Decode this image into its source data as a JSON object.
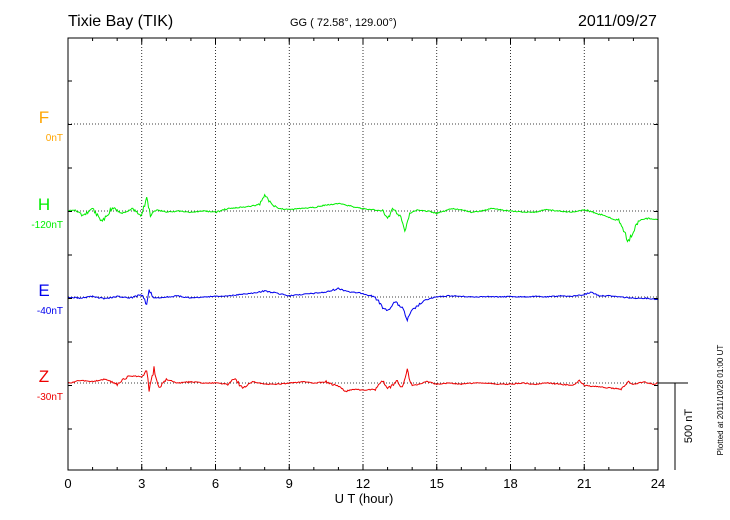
{
  "header": {
    "station": "Tixie Bay (TIK)",
    "coords": "GG ( 72.58°, 129.00°)",
    "date": "2011/09/27"
  },
  "side_note": "Plotted at 2011/10/28 01:00 UT",
  "scale_label": "500 nT",
  "chart_data": {
    "type": "line",
    "xlabel": "U T (hour)",
    "xlim": [
      0,
      24
    ],
    "x_ticks": [
      "0",
      "3",
      "6",
      "9",
      "12",
      "15",
      "18",
      "21",
      "24"
    ],
    "grid": true,
    "scale_bar_nT": 500,
    "colors": {
      "F": "#ffa500",
      "H": "#00ee00",
      "E": "#0000ee",
      "Z": "#ee0000"
    },
    "series": [
      {
        "name": "F",
        "baseline": "0nT",
        "color": "#ffa500",
        "points": []
      },
      {
        "name": "H",
        "baseline": "-120nT",
        "color": "#00ee00",
        "points": [
          [
            0.0,
            0
          ],
          [
            0.3,
            -10
          ],
          [
            0.6,
            40
          ],
          [
            1.0,
            -20
          ],
          [
            1.4,
            90
          ],
          [
            1.8,
            -30
          ],
          [
            2.2,
            20
          ],
          [
            2.6,
            -20
          ],
          [
            3.0,
            40
          ],
          [
            3.2,
            -120
          ],
          [
            3.35,
            40
          ],
          [
            3.6,
            -10
          ],
          [
            4.0,
            10
          ],
          [
            4.5,
            0
          ],
          [
            5.0,
            10
          ],
          [
            5.5,
            0
          ],
          [
            6.0,
            10
          ],
          [
            6.5,
            -20
          ],
          [
            7.0,
            -30
          ],
          [
            7.5,
            -40
          ],
          [
            7.8,
            -60
          ],
          [
            8.0,
            -130
          ],
          [
            8.3,
            -50
          ],
          [
            8.6,
            -20
          ],
          [
            9.0,
            -10
          ],
          [
            9.5,
            -20
          ],
          [
            10.0,
            -30
          ],
          [
            10.5,
            -50
          ],
          [
            11.0,
            -60
          ],
          [
            11.5,
            -40
          ],
          [
            12.0,
            -20
          ],
          [
            12.4,
            -10
          ],
          [
            12.8,
            0
          ],
          [
            13.0,
            70
          ],
          [
            13.2,
            -20
          ],
          [
            13.5,
            40
          ],
          [
            13.7,
            160
          ],
          [
            13.9,
            20
          ],
          [
            14.2,
            -10
          ],
          [
            14.6,
            0
          ],
          [
            15.0,
            20
          ],
          [
            15.3,
            0
          ],
          [
            15.6,
            -20
          ],
          [
            16.0,
            -10
          ],
          [
            16.4,
            10
          ],
          [
            16.8,
            0
          ],
          [
            17.2,
            -20
          ],
          [
            17.6,
            -10
          ],
          [
            18.0,
            0
          ],
          [
            18.5,
            10
          ],
          [
            19.0,
            10
          ],
          [
            19.5,
            -10
          ],
          [
            20.0,
            0
          ],
          [
            20.5,
            10
          ],
          [
            21.0,
            -10
          ],
          [
            21.5,
            20
          ],
          [
            22.0,
            50
          ],
          [
            22.4,
            80
          ],
          [
            22.8,
            250
          ],
          [
            23.2,
            80
          ],
          [
            23.6,
            60
          ],
          [
            24.0,
            70
          ]
        ]
      },
      {
        "name": "E",
        "baseline": "-40nT",
        "color": "#0000ee",
        "points": [
          [
            0.0,
            0
          ],
          [
            0.5,
            10
          ],
          [
            1.0,
            -5
          ],
          [
            1.5,
            15
          ],
          [
            2.0,
            -5
          ],
          [
            2.5,
            10
          ],
          [
            3.0,
            -20
          ],
          [
            3.2,
            60
          ],
          [
            3.3,
            -60
          ],
          [
            3.5,
            10
          ],
          [
            4.0,
            0
          ],
          [
            4.5,
            -10
          ],
          [
            5.0,
            10
          ],
          [
            5.5,
            0
          ],
          [
            6.0,
            -5
          ],
          [
            6.5,
            -10
          ],
          [
            7.0,
            -20
          ],
          [
            7.5,
            -30
          ],
          [
            8.0,
            -50
          ],
          [
            8.5,
            -30
          ],
          [
            9.0,
            -10
          ],
          [
            9.5,
            -20
          ],
          [
            10.0,
            -30
          ],
          [
            10.5,
            -40
          ],
          [
            11.0,
            -70
          ],
          [
            11.5,
            -40
          ],
          [
            12.0,
            -30
          ],
          [
            12.5,
            0
          ],
          [
            12.8,
            90
          ],
          [
            13.0,
            110
          ],
          [
            13.3,
            40
          ],
          [
            13.6,
            90
          ],
          [
            13.8,
            190
          ],
          [
            14.0,
            110
          ],
          [
            14.3,
            60
          ],
          [
            14.6,
            20
          ],
          [
            15.0,
            0
          ],
          [
            15.5,
            -10
          ],
          [
            16.0,
            -5
          ],
          [
            16.5,
            0
          ],
          [
            17.0,
            -5
          ],
          [
            17.5,
            0
          ],
          [
            18.0,
            -5
          ],
          [
            18.5,
            0
          ],
          [
            19.0,
            -5
          ],
          [
            19.5,
            0
          ],
          [
            20.0,
            -10
          ],
          [
            20.5,
            -5
          ],
          [
            21.0,
            -20
          ],
          [
            21.3,
            -40
          ],
          [
            21.6,
            -10
          ],
          [
            22.0,
            -10
          ],
          [
            22.5,
            0
          ],
          [
            23.0,
            10
          ],
          [
            23.5,
            10
          ],
          [
            24.0,
            20
          ]
        ]
      },
      {
        "name": "Z",
        "baseline": "-30nT",
        "color": "#ee0000",
        "points": [
          [
            0.0,
            0
          ],
          [
            0.5,
            -20
          ],
          [
            1.0,
            -10
          ],
          [
            1.5,
            -30
          ],
          [
            2.0,
            10
          ],
          [
            2.5,
            -60
          ],
          [
            3.0,
            -50
          ],
          [
            3.2,
            -100
          ],
          [
            3.3,
            60
          ],
          [
            3.5,
            -120
          ],
          [
            3.7,
            40
          ],
          [
            4.0,
            -30
          ],
          [
            4.5,
            0
          ],
          [
            5.0,
            -10
          ],
          [
            5.5,
            0
          ],
          [
            6.0,
            0
          ],
          [
            6.5,
            10
          ],
          [
            6.8,
            -40
          ],
          [
            7.1,
            50
          ],
          [
            7.5,
            -10
          ],
          [
            8.0,
            10
          ],
          [
            8.5,
            10
          ],
          [
            9.0,
            0
          ],
          [
            9.5,
            -10
          ],
          [
            10.0,
            0
          ],
          [
            10.5,
            -10
          ],
          [
            11.0,
            30
          ],
          [
            11.3,
            70
          ],
          [
            11.6,
            50
          ],
          [
            12.0,
            60
          ],
          [
            12.5,
            50
          ],
          [
            12.8,
            -20
          ],
          [
            13.0,
            50
          ],
          [
            13.4,
            -20
          ],
          [
            13.6,
            50
          ],
          [
            13.8,
            -100
          ],
          [
            14.0,
            20
          ],
          [
            14.3,
            10
          ],
          [
            14.6,
            -10
          ],
          [
            15.0,
            10
          ],
          [
            15.5,
            0
          ],
          [
            16.0,
            10
          ],
          [
            16.5,
            0
          ],
          [
            17.0,
            0
          ],
          [
            17.5,
            10
          ],
          [
            18.0,
            10
          ],
          [
            18.5,
            0
          ],
          [
            19.0,
            10
          ],
          [
            19.5,
            0
          ],
          [
            20.0,
            10
          ],
          [
            20.5,
            20
          ],
          [
            20.8,
            -20
          ],
          [
            21.0,
            20
          ],
          [
            21.5,
            30
          ],
          [
            22.0,
            40
          ],
          [
            22.5,
            50
          ],
          [
            22.8,
            -10
          ],
          [
            23.0,
            10
          ],
          [
            23.4,
            -10
          ],
          [
            23.8,
            10
          ],
          [
            24.0,
            0
          ]
        ]
      }
    ]
  }
}
